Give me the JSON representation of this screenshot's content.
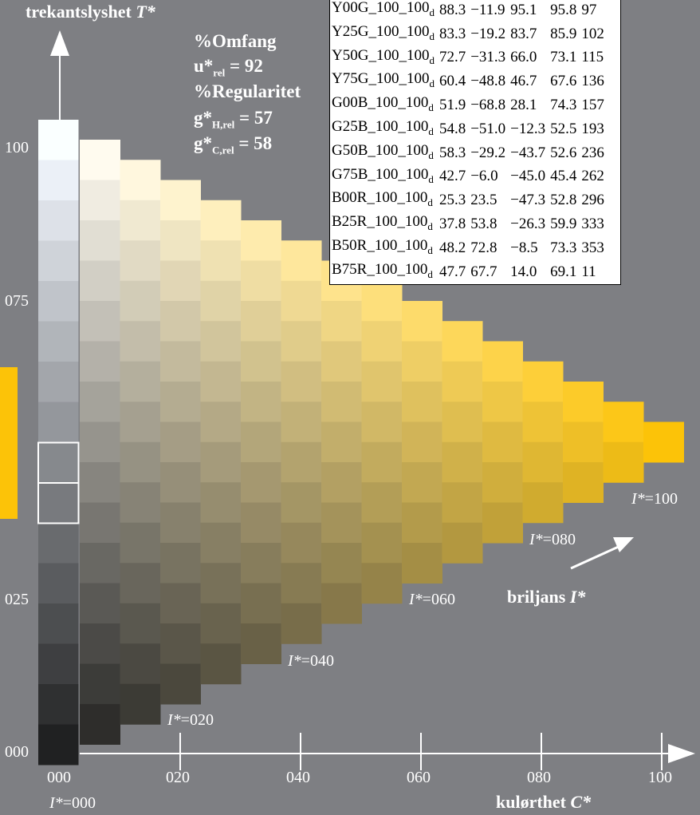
{
  "header": {
    "title": "trekantslyshet",
    "title_var": "T*"
  },
  "stats": {
    "l1": "%Omfang",
    "l2_a": "u*",
    "l2_sub": "rel",
    "l2_b": " = 92",
    "l3": "%Regularitet",
    "l4_a": "g*",
    "l4_sub": "H,rel",
    "l4_b": " = 57",
    "l5_a": "g*",
    "l5_sub": "C,rel",
    "l5_b": " = 58"
  },
  "table": {
    "rows": [
      [
        "Y00G_100_100",
        "d",
        "88.3",
        "−11.9",
        "95.1",
        "95.8",
        "97"
      ],
      [
        "Y25G_100_100",
        "d",
        "83.3",
        "−19.2",
        "83.7",
        "85.9",
        "102"
      ],
      [
        "Y50G_100_100",
        "d",
        "72.7",
        "−31.3",
        "66.0",
        "73.1",
        "115"
      ],
      [
        "Y75G_100_100",
        "d",
        "60.4",
        "−48.8",
        "46.7",
        "67.6",
        "136"
      ],
      [
        "G00B_100_100",
        "d",
        "51.9",
        "−68.8",
        "28.1",
        "74.3",
        "157"
      ],
      [
        "G25B_100_100",
        "d",
        "54.8",
        "−51.0",
        "−12.3",
        "52.5",
        "193"
      ],
      [
        "G50B_100_100",
        "d",
        "58.3",
        "−29.2",
        "−43.7",
        "52.6",
        "236"
      ],
      [
        "G75B_100_100",
        "d",
        "42.7",
        "−6.0",
        "−45.0",
        "45.4",
        "262"
      ],
      [
        "B00R_100_100",
        "d",
        "25.3",
        "23.5",
        "−47.3",
        "52.8",
        "296"
      ],
      [
        "B25R_100_100",
        "d",
        "37.8",
        "53.8",
        "−26.3",
        "59.9",
        "333"
      ],
      [
        "B50R_100_100",
        "d",
        "48.2",
        "72.8",
        "−8.5",
        "73.3",
        "353"
      ],
      [
        "B75R_100_100",
        "d",
        "47.7",
        "67.7",
        "14.0",
        "69.1",
        "11"
      ]
    ]
  },
  "chart_data": {
    "type": "heatmap",
    "hue_color": "#fcc308",
    "xlabel": "kulørthet",
    "xlabel_var": "C*",
    "x_ticks": [
      "000",
      "020",
      "040",
      "060",
      "080",
      "100"
    ],
    "y_ticks": [
      "000",
      "025",
      "075",
      "100"
    ],
    "iso_lines": [
      {
        "var": "I*",
        "val": "=000"
      },
      {
        "var": "I*",
        "val": "=020"
      },
      {
        "var": "I*",
        "val": "=040"
      },
      {
        "var": "I*",
        "val": "=060"
      },
      {
        "var": "I*",
        "val": "=080"
      },
      {
        "var": "I*",
        "val": "=100"
      }
    ],
    "brilliance_label": "briljans",
    "brilliance_var": "I*",
    "grey_steps": 16,
    "chroma_steps": 15,
    "highlighted_grey_steps": [
      8,
      9
    ]
  }
}
